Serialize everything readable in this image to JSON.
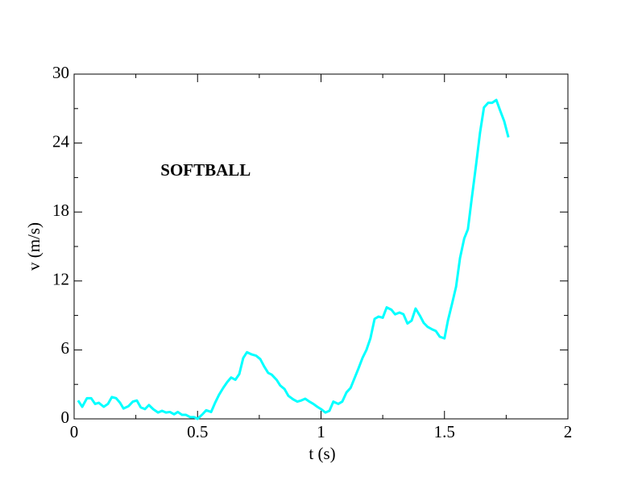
{
  "chart_data": {
    "type": "line",
    "xlabel": "t (s)",
    "ylabel": "v (m/s)",
    "annotations": [
      {
        "text": "SOFTBALL",
        "x": 0.35,
        "y": 21.5
      }
    ],
    "x": [
      0.016,
      0.033,
      0.052,
      0.069,
      0.085,
      0.1,
      0.12,
      0.137,
      0.153,
      0.17,
      0.186,
      0.2,
      0.22,
      0.238,
      0.254,
      0.27,
      0.287,
      0.303,
      0.32,
      0.34,
      0.356,
      0.372,
      0.388,
      0.405,
      0.42,
      0.437,
      0.453,
      0.47,
      0.486,
      0.5,
      0.52,
      0.535,
      0.555,
      0.571,
      0.587,
      0.604,
      0.62,
      0.636,
      0.653,
      0.669,
      0.685,
      0.7,
      0.72,
      0.737,
      0.754,
      0.77,
      0.786,
      0.8,
      0.82,
      0.835,
      0.852,
      0.868,
      0.887,
      0.904,
      0.92,
      0.936,
      0.953,
      0.969,
      0.985,
      1.0,
      1.018,
      1.034,
      1.05,
      1.07,
      1.086,
      1.103,
      1.12,
      1.135,
      1.152,
      1.168,
      1.184,
      1.2,
      1.217,
      1.233,
      1.25,
      1.266,
      1.285,
      1.3,
      1.318,
      1.334,
      1.35,
      1.367,
      1.383,
      1.4,
      1.416,
      1.432,
      1.449,
      1.465,
      1.481,
      1.5,
      1.514,
      1.53,
      1.547,
      1.563,
      1.58,
      1.595,
      1.61,
      1.628,
      1.644,
      1.66,
      1.677,
      1.693,
      1.71,
      1.726,
      1.742,
      1.759
    ],
    "values": [
      1.6,
      1.05,
      1.8,
      1.8,
      1.3,
      1.4,
      1.05,
      1.3,
      1.9,
      1.8,
      1.4,
      0.9,
      1.1,
      1.5,
      1.6,
      1.0,
      0.85,
      1.2,
      0.85,
      0.55,
      0.7,
      0.55,
      0.6,
      0.4,
      0.6,
      0.35,
      0.35,
      0.15,
      0.15,
      0.0,
      0.4,
      0.75,
      0.6,
      1.4,
      2.1,
      2.7,
      3.2,
      3.6,
      3.4,
      3.9,
      5.3,
      5.8,
      5.6,
      5.5,
      5.2,
      4.55,
      4.0,
      3.85,
      3.4,
      2.9,
      2.6,
      2.0,
      1.7,
      1.5,
      1.6,
      1.75,
      1.5,
      1.3,
      1.05,
      0.85,
      0.55,
      0.7,
      1.5,
      1.3,
      1.5,
      2.3,
      2.7,
      3.5,
      4.4,
      5.3,
      6.0,
      7.0,
      8.7,
      8.9,
      8.8,
      9.7,
      9.5,
      9.1,
      9.25,
      9.1,
      8.3,
      8.55,
      9.6,
      9.0,
      8.35,
      8.0,
      7.8,
      7.65,
      7.15,
      7.0,
      8.55,
      9.95,
      11.5,
      14.0,
      15.7,
      16.5,
      19.1,
      22.1,
      24.9,
      27.1,
      27.5,
      27.5,
      27.75,
      26.8,
      25.9,
      24.5
    ],
    "color": "#00ffff",
    "xlim": [
      0,
      2
    ],
    "xticks": [
      0,
      0.5,
      1,
      1.5,
      2
    ],
    "xminorticks": [
      0.25,
      0.75,
      1.25,
      1.75
    ],
    "ylim": [
      0,
      30
    ],
    "yticks": [
      0,
      6,
      12,
      18,
      24,
      30
    ],
    "yminorticks": [
      3,
      9,
      15,
      21,
      27
    ]
  }
}
